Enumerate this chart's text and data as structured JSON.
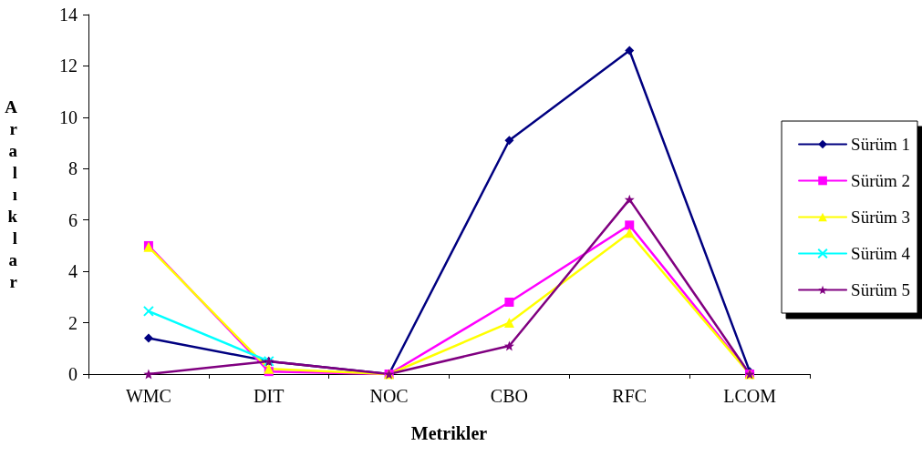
{
  "chart_data": {
    "type": "line",
    "xlabel": "Metrikler",
    "ylabel": "Aralıklar",
    "categories": [
      "WMC",
      "DIT",
      "NOC",
      "CBO",
      "RFC",
      "LCOM"
    ],
    "series": [
      {
        "name": "Sürüm 1",
        "color": "#000080",
        "marker": "diamond",
        "values": [
          1.4,
          0.5,
          0,
          9.1,
          12.6,
          0.1
        ]
      },
      {
        "name": "Sürüm 2",
        "color": "#ff00ff",
        "marker": "square",
        "values": [
          5.0,
          0.1,
          0,
          2.8,
          5.8,
          0
        ]
      },
      {
        "name": "Sürüm 3",
        "color": "#ffff00",
        "marker": "triangle",
        "values": [
          4.95,
          0.2,
          0,
          2.0,
          5.5,
          0
        ]
      },
      {
        "name": "Sürüm 4",
        "color": "#00ffff",
        "marker": "cross",
        "values": [
          2.45,
          0.5,
          null,
          null,
          null,
          null
        ]
      },
      {
        "name": "Sürüm 5",
        "color": "#800080",
        "marker": "star",
        "values": [
          0,
          0.5,
          0,
          1.1,
          6.8,
          0
        ]
      }
    ],
    "ylim": [
      0,
      14
    ],
    "yticks": [
      0,
      2,
      4,
      6,
      8,
      10,
      12,
      14
    ],
    "grid": false,
    "legend": "right"
  }
}
